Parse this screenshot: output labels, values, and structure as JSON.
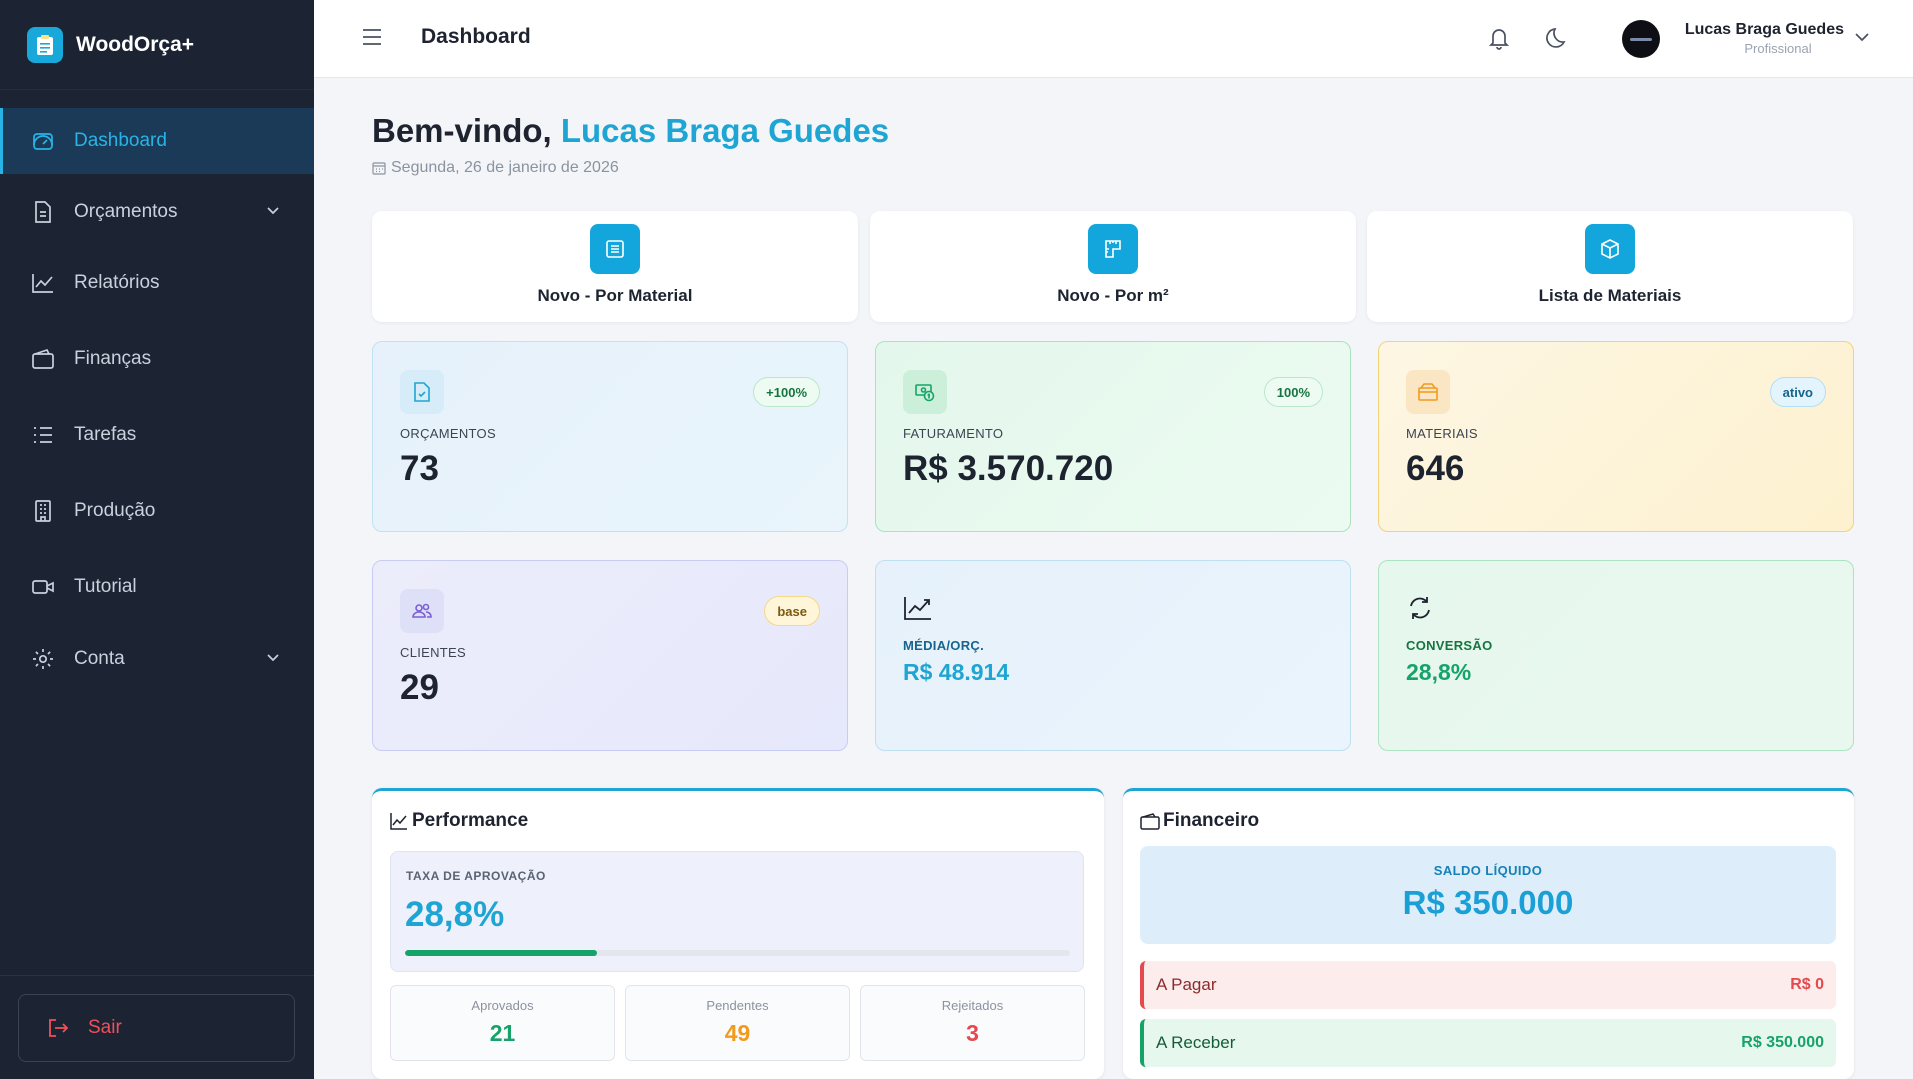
{
  "app": {
    "name": "WoodOrça+"
  },
  "sidebar": {
    "items": [
      {
        "label": "Dashboard",
        "icon": "gauge-icon",
        "active": true
      },
      {
        "label": "Orçamentos",
        "icon": "document-icon",
        "has_children": true
      },
      {
        "label": "Relatórios",
        "icon": "chart-line-icon"
      },
      {
        "label": "Finanças",
        "icon": "wallet-icon"
      },
      {
        "label": "Tarefas",
        "icon": "list-icon"
      },
      {
        "label": "Produção",
        "icon": "building-icon"
      },
      {
        "label": "Tutorial",
        "icon": "video-icon"
      },
      {
        "label": "Conta",
        "icon": "gear-icon",
        "has_children": true
      }
    ],
    "logout_label": "Sair"
  },
  "header": {
    "title": "Dashboard",
    "user": {
      "name": "Lucas Braga Guedes",
      "role": "Profissional"
    }
  },
  "welcome": {
    "greeting": "Bem-vindo,",
    "name": "Lucas Braga Guedes",
    "date": "Segunda, 26 de janeiro de 2026"
  },
  "quick_actions": [
    {
      "label": "Novo - Por Material",
      "icon": "document-icon"
    },
    {
      "label": "Novo - Por m²",
      "icon": "ruler-icon"
    },
    {
      "label": "Lista de Materiais",
      "icon": "box-icon"
    }
  ],
  "stats": {
    "orcamentos": {
      "label": "ORÇAMENTOS",
      "value": "73",
      "badge": "+100%"
    },
    "faturamento": {
      "label": "FATURAMENTO",
      "value": "R$ 3.570.720",
      "badge": "100%"
    },
    "materiais": {
      "label": "MATERIAIS",
      "value": "646",
      "badge": "ativo"
    },
    "clientes": {
      "label": "CLIENTES",
      "value": "29",
      "badge": "base"
    },
    "media": {
      "label": "MÉDIA/ORÇ.",
      "value": "R$ 48.914"
    },
    "conversao": {
      "label": "CONVERSÃO",
      "value": "28,8%"
    }
  },
  "performance": {
    "title": "Performance",
    "approval_label": "TAXA DE APROVAÇÃO",
    "approval_value": "28,8%",
    "approval_fraction": 0.288,
    "counts": [
      {
        "label": "Aprovados",
        "value": "21",
        "color": "#16a36a"
      },
      {
        "label": "Pendentes",
        "value": "49",
        "color": "#f29a1c"
      },
      {
        "label": "Rejeitados",
        "value": "3",
        "color": "#e5484d"
      }
    ]
  },
  "financeiro": {
    "title": "Financeiro",
    "saldo_label": "SALDO LÍQUIDO",
    "saldo_value": "R$ 350.000",
    "a_pagar": {
      "label": "A Pagar",
      "value": "R$ 0"
    },
    "a_receber": {
      "label": "A Receber",
      "value": "R$ 350.000"
    }
  },
  "colors": {
    "accent": "#1ea5d3",
    "sidebar_bg": "#1c2333",
    "success": "#16a36a",
    "warning": "#f29a1c",
    "danger": "#e5484d"
  }
}
